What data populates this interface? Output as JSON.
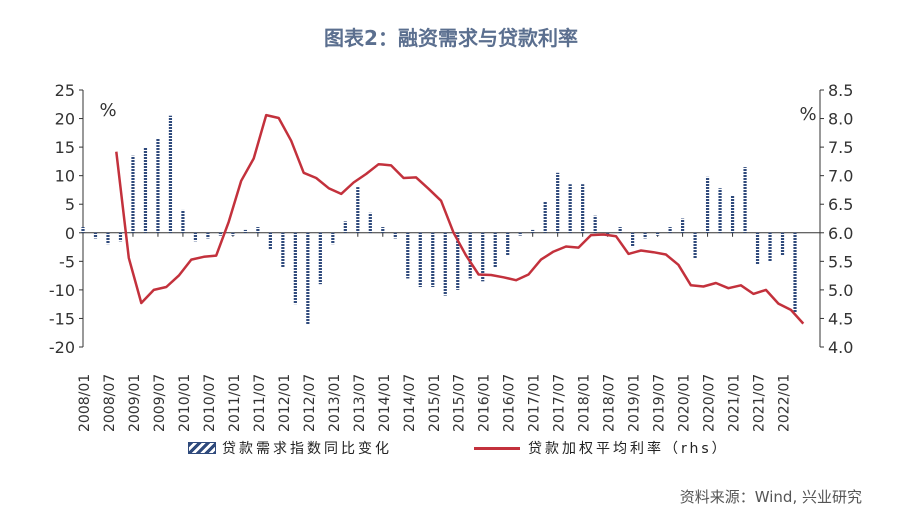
{
  "title": "图表2：融资需求与贷款利率",
  "source": "资料来源：Wind, 兴业研究",
  "colors": {
    "bar": "#2f4a7c",
    "line": "#c3313c",
    "title": "#5b6f8f"
  },
  "chart_data": {
    "type": "bar+line",
    "x_tick_labels": [
      "2008/01",
      "2008/07",
      "2009/01",
      "2009/07",
      "2010/01",
      "2010/07",
      "2011/01",
      "2011/07",
      "2012/01",
      "2012/07",
      "2013/01",
      "2013/07",
      "2014/01",
      "2014/07",
      "2015/01",
      "2015/07",
      "2016/01",
      "2016/07",
      "2017/01",
      "2017/07",
      "2018/01",
      "2018/07",
      "2019/01",
      "2019/07",
      "2020/01",
      "2020/07",
      "2021/01",
      "2021/07",
      "2022/01"
    ],
    "y_left": {
      "label": "%",
      "range": [
        -20,
        25
      ],
      "ticks": [
        -20,
        -15,
        -10,
        -5,
        0,
        5,
        10,
        15,
        20,
        25
      ]
    },
    "y_right": {
      "label": "%",
      "range": [
        4.0,
        8.5
      ],
      "ticks": [
        "4.0",
        "4.5",
        "5.0",
        "5.5",
        "6.0",
        "6.5",
        "7.0",
        "7.5",
        "8.0",
        "8.5"
      ]
    },
    "legend_position": "bottom",
    "grid": false,
    "series": [
      {
        "name": "贷款需求指数同比变化",
        "type": "bar",
        "axis": "left",
        "x": [
          "2008/01",
          "2008/04",
          "2008/07",
          "2008/10",
          "2009/01",
          "2009/04",
          "2009/07",
          "2009/10",
          "2010/01",
          "2010/04",
          "2010/07",
          "2010/10",
          "2011/01",
          "2011/04",
          "2011/07",
          "2011/10",
          "2012/01",
          "2012/04",
          "2012/07",
          "2012/10",
          "2013/01",
          "2013/04",
          "2013/07",
          "2013/10",
          "2014/01",
          "2014/04",
          "2014/07",
          "2014/10",
          "2015/01",
          "2015/04",
          "2015/07",
          "2015/10",
          "2016/01",
          "2016/04",
          "2016/07",
          "2016/10",
          "2017/01",
          "2017/04",
          "2017/07",
          "2017/10",
          "2018/01",
          "2018/04",
          "2018/07",
          "2018/10",
          "2019/01",
          "2019/04",
          "2019/07",
          "2019/10",
          "2020/01",
          "2020/04",
          "2020/07",
          "2020/10",
          "2021/01",
          "2021/04",
          "2021/07",
          "2021/10",
          "2022/01",
          "2022/04"
        ],
        "values": [
          1.0,
          -1.0,
          -2.0,
          -1.5,
          13.5,
          15.0,
          16.5,
          20.5,
          4.0,
          -1.5,
          -1.0,
          -0.5,
          -0.5,
          0.5,
          1.0,
          -3.0,
          -6.0,
          -12.5,
          -16.0,
          -9.0,
          -2.0,
          2.0,
          8.0,
          3.5,
          1.0,
          -1.0,
          -8.0,
          -9.5,
          -9.5,
          -11.0,
          -10.0,
          -8.0,
          -8.5,
          -6.0,
          -4.0,
          -0.5,
          0.5,
          5.5,
          10.5,
          8.5,
          8.5,
          3.0,
          -0.5,
          1.0,
          -2.5,
          -1.0,
          -0.5,
          1.0,
          2.5,
          -4.5,
          9.8,
          7.8,
          6.5,
          11.5,
          -5.5,
          -5.0,
          -4.0,
          -14.0
        ]
      },
      {
        "name": "贷款加权平均利率（rhs）",
        "type": "line",
        "axis": "right",
        "x": [
          "2008/09",
          "2008/12",
          "2009/03",
          "2009/06",
          "2009/09",
          "2009/12",
          "2010/03",
          "2010/06",
          "2010/09",
          "2010/12",
          "2011/03",
          "2011/06",
          "2011/09",
          "2011/12",
          "2012/03",
          "2012/06",
          "2012/09",
          "2012/12",
          "2013/03",
          "2013/06",
          "2013/09",
          "2013/12",
          "2014/03",
          "2014/06",
          "2014/09",
          "2014/12",
          "2015/03",
          "2015/06",
          "2015/09",
          "2015/12",
          "2016/03",
          "2016/06",
          "2016/09",
          "2016/12",
          "2017/03",
          "2017/06",
          "2017/09",
          "2017/12",
          "2018/03",
          "2018/06",
          "2018/09",
          "2018/12",
          "2019/03",
          "2019/06",
          "2019/09",
          "2019/12",
          "2020/03",
          "2020/06",
          "2020/09",
          "2020/12",
          "2021/03",
          "2021/06",
          "2021/09",
          "2021/12",
          "2022/03",
          "2022/06"
        ],
        "values": [
          7.42,
          5.56,
          4.77,
          5.0,
          5.05,
          5.25,
          5.53,
          5.58,
          5.6,
          6.19,
          6.91,
          7.3,
          8.06,
          8.01,
          7.61,
          7.05,
          6.96,
          6.78,
          6.68,
          6.88,
          7.03,
          7.2,
          7.18,
          6.96,
          6.97,
          6.77,
          6.56,
          6.0,
          5.6,
          5.27,
          5.26,
          5.22,
          5.17,
          5.27,
          5.53,
          5.67,
          5.76,
          5.74,
          5.96,
          5.97,
          5.94,
          5.63,
          5.69,
          5.66,
          5.62,
          5.44,
          5.08,
          5.06,
          5.12,
          5.03,
          5.08,
          4.93,
          5.0,
          4.76,
          4.65,
          4.41
        ]
      }
    ]
  }
}
